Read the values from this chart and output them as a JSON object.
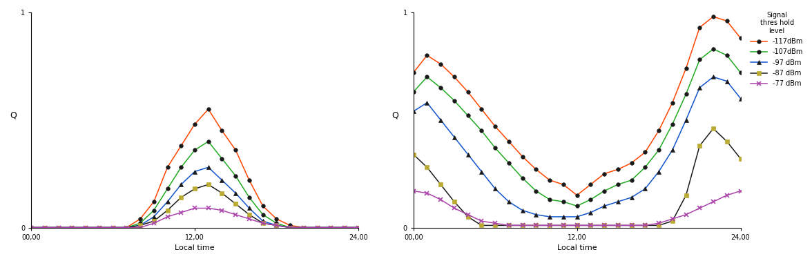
{
  "hours": [
    0,
    1,
    2,
    3,
    4,
    5,
    6,
    7,
    8,
    9,
    10,
    11,
    12,
    13,
    14,
    15,
    16,
    17,
    18,
    19,
    20,
    21,
    22,
    23,
    24
  ],
  "left_chart": {
    "xlabel": "Local time",
    "ylabel": "Q",
    "xlim": [
      0,
      24
    ],
    "ylim": [
      0,
      1
    ],
    "xticks": [
      0,
      12,
      24
    ],
    "xticklabels": [
      "00,00",
      "12,00",
      "24,00"
    ],
    "series": [
      {
        "label": "-117dBm",
        "color": "#FF4500",
        "marker": "o",
        "markercolor": "#1a1a1a",
        "values": [
          0,
          0,
          0,
          0,
          0,
          0,
          0,
          0,
          0.04,
          0.12,
          0.28,
          0.38,
          0.48,
          0.55,
          0.45,
          0.36,
          0.22,
          0.1,
          0.04,
          0.01,
          0,
          0,
          0,
          0,
          0
        ]
      },
      {
        "label": "-107dBm",
        "color": "#22AA22",
        "marker": "o",
        "markercolor": "#1a1a1a",
        "values": [
          0,
          0,
          0,
          0,
          0,
          0,
          0,
          0,
          0.02,
          0.08,
          0.18,
          0.28,
          0.36,
          0.4,
          0.32,
          0.24,
          0.14,
          0.06,
          0.02,
          0,
          0,
          0,
          0,
          0,
          0
        ]
      },
      {
        "label": "-97 dBm",
        "color": "#1155CC",
        "marker": "^",
        "markercolor": "#1a1a1a",
        "values": [
          0,
          0,
          0,
          0,
          0,
          0,
          0,
          0,
          0.01,
          0.05,
          0.12,
          0.2,
          0.26,
          0.28,
          0.22,
          0.16,
          0.09,
          0.03,
          0.01,
          0,
          0,
          0,
          0,
          0,
          0
        ]
      },
      {
        "label": "-87 dBm",
        "color": "#1a1a1a",
        "marker": "s",
        "markercolor": "#bbaa33",
        "values": [
          0,
          0,
          0,
          0,
          0,
          0,
          0,
          0,
          0.01,
          0.03,
          0.08,
          0.14,
          0.18,
          0.2,
          0.16,
          0.11,
          0.06,
          0.02,
          0.01,
          0,
          0,
          0,
          0,
          0,
          0
        ]
      },
      {
        "label": "-77 dBm",
        "color": "#AA44AA",
        "marker": "x",
        "markercolor": "#AA44AA",
        "values": [
          0,
          0,
          0,
          0,
          0,
          0,
          0,
          0,
          0,
          0.02,
          0.05,
          0.07,
          0.09,
          0.09,
          0.08,
          0.06,
          0.04,
          0.02,
          0.01,
          0,
          0,
          0,
          0,
          0,
          0
        ]
      }
    ]
  },
  "right_chart": {
    "xlabel": "Local time",
    "ylabel": "Q",
    "xlim": [
      0,
      24
    ],
    "ylim": [
      0,
      1
    ],
    "xticks": [
      0,
      12,
      24
    ],
    "xticklabels": [
      "00,00",
      "12,00",
      "24,00"
    ],
    "legend_title": "Signal\nthres hold\nlevel",
    "series": [
      {
        "label": "-117dBm",
        "color": "#FF4500",
        "marker": "o",
        "markercolor": "#1a1a1a",
        "values": [
          0.72,
          0.8,
          0.76,
          0.7,
          0.63,
          0.55,
          0.47,
          0.4,
          0.33,
          0.27,
          0.22,
          0.2,
          0.15,
          0.2,
          0.25,
          0.27,
          0.3,
          0.35,
          0.45,
          0.58,
          0.74,
          0.93,
          0.98,
          0.96,
          0.88
        ]
      },
      {
        "label": "-107dBm",
        "color": "#22AA22",
        "marker": "o",
        "markercolor": "#1a1a1a",
        "values": [
          0.63,
          0.7,
          0.65,
          0.59,
          0.52,
          0.45,
          0.37,
          0.3,
          0.23,
          0.17,
          0.13,
          0.12,
          0.1,
          0.13,
          0.17,
          0.2,
          0.22,
          0.28,
          0.36,
          0.48,
          0.62,
          0.78,
          0.83,
          0.8,
          0.72
        ]
      },
      {
        "label": "-97 dBm",
        "color": "#1155CC",
        "marker": "^",
        "markercolor": "#1a1a1a",
        "values": [
          0.54,
          0.58,
          0.5,
          0.42,
          0.34,
          0.26,
          0.18,
          0.12,
          0.08,
          0.06,
          0.05,
          0.05,
          0.05,
          0.07,
          0.1,
          0.12,
          0.14,
          0.18,
          0.26,
          0.36,
          0.5,
          0.65,
          0.7,
          0.68,
          0.6
        ]
      },
      {
        "label": "-87 dBm",
        "color": "#1a1a1a",
        "marker": "s",
        "markercolor": "#bbaa33",
        "values": [
          0.34,
          0.28,
          0.2,
          0.12,
          0.05,
          0.01,
          0.01,
          0.01,
          0.01,
          0.01,
          0.01,
          0.01,
          0.01,
          0.01,
          0.01,
          0.01,
          0.01,
          0.01,
          0.01,
          0.03,
          0.15,
          0.38,
          0.46,
          0.4,
          0.32
        ]
      },
      {
        "label": "-77 dBm",
        "color": "#AA44AA",
        "marker": "x",
        "markercolor": "#AA44AA",
        "values": [
          0.17,
          0.16,
          0.13,
          0.09,
          0.06,
          0.03,
          0.02,
          0.01,
          0.01,
          0.01,
          0.01,
          0.01,
          0.01,
          0.01,
          0.01,
          0.01,
          0.01,
          0.01,
          0.02,
          0.04,
          0.06,
          0.09,
          0.12,
          0.15,
          0.17
        ]
      }
    ]
  },
  "background_color": "#ffffff",
  "marker_size": 4,
  "linewidth": 1.1
}
